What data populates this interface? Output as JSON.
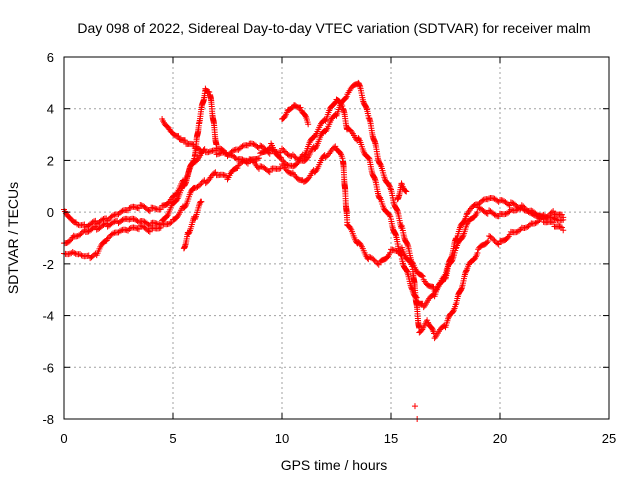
{
  "chart_data": {
    "type": "scatter",
    "title": "Day 098 of 2022, Sidereal Day-to-day VTEC variation (SDTVAR) for receiver malm",
    "xlabel": "GPS time / hours",
    "ylabel": "SDTVAR / TECUs",
    "xlim": [
      0,
      25
    ],
    "ylim": [
      -8,
      6
    ],
    "xticks": [
      0,
      5,
      10,
      15,
      20,
      25
    ],
    "yticks": [
      -8,
      -6,
      -4,
      -2,
      0,
      2,
      4,
      6
    ],
    "grid": true,
    "marker": "plus",
    "color": "#ff0000",
    "series": [
      {
        "x": [
          0,
          0.3,
          0.6,
          1.0,
          1.5,
          2.0,
          2.5,
          3.0,
          3.5,
          4.0,
          4.5,
          5.0,
          5.5,
          6.0,
          6.5,
          7.0,
          7.5,
          8.0,
          8.5,
          9.0,
          9.5,
          10.0,
          10.5,
          11.0,
          11.5,
          12.0,
          12.5,
          13.0,
          13.5,
          14.0,
          14.5,
          15.0,
          15.5,
          16.0,
          16.5,
          17.0,
          17.5,
          18.0,
          18.5,
          19.0,
          19.5,
          20.0,
          20.5,
          21.0,
          21.5,
          22.0,
          22.5,
          22.9
        ],
        "y": [
          0.1,
          -0.2,
          -0.4,
          -0.5,
          -0.4,
          -0.3,
          -0.1,
          0.1,
          0.2,
          0.1,
          0.2,
          0.6,
          1.2,
          2.0,
          2.4,
          2.3,
          2.2,
          2.4,
          2.6,
          2.5,
          2.3,
          2.4,
          2.2,
          2.0,
          2.5,
          3.2,
          3.8,
          4.6,
          5.0,
          3.6,
          1.8,
          0.8,
          -0.6,
          -2.0,
          -2.6,
          -3.0,
          -2.5,
          -1.0,
          0.0,
          0.3,
          0.5,
          0.4,
          0.3,
          0.2,
          0.0,
          -0.1,
          -0.2,
          -0.3
        ]
      },
      {
        "x": [
          0,
          0.5,
          1.0,
          1.5,
          2.0,
          2.5,
          3.0,
          3.5,
          4.0,
          4.5,
          5.0,
          5.5,
          6.0,
          6.2,
          6.5,
          6.7,
          7.0,
          7.5,
          8.0,
          8.5,
          9.0,
          9.5,
          10.0,
          10.5,
          11.0,
          11.5,
          12.0,
          12.5,
          12.8,
          13.0,
          13.5,
          14.0,
          14.5,
          15.0,
          15.5,
          16.0,
          16.2,
          16.5,
          17.0,
          17.5,
          18.0,
          18.5,
          19.0,
          19.5,
          20.0,
          20.5,
          21.0,
          21.5,
          22.0,
          22.5,
          22.9
        ],
        "y": [
          -1.2,
          -0.9,
          -0.7,
          -0.6,
          -0.5,
          -0.4,
          -0.3,
          -0.4,
          -0.5,
          -0.4,
          0.3,
          1.0,
          2.2,
          3.5,
          4.8,
          4.6,
          2.5,
          2.2,
          2.0,
          1.9,
          2.2,
          2.6,
          2.0,
          1.8,
          2.2,
          3.0,
          3.6,
          4.4,
          4.0,
          3.2,
          2.8,
          2.0,
          0.5,
          -0.3,
          -1.8,
          -3.0,
          -3.4,
          -3.6,
          -3.2,
          -2.4,
          -1.4,
          -0.5,
          0.1,
          0.0,
          -0.1,
          0.1,
          0.2,
          0.0,
          -0.3,
          -0.5,
          -0.7
        ]
      },
      {
        "x": [
          0,
          0.4,
          0.8,
          1.2,
          1.5,
          2.0,
          2.5,
          3.0,
          3.5,
          4.0,
          4.5,
          5.0,
          5.5,
          6.0,
          6.5,
          7.0,
          7.5,
          8.0,
          8.5,
          9.0,
          9.5,
          10.0,
          10.5,
          11.0,
          11.5,
          12.0,
          12.5,
          12.8,
          13.0,
          13.5,
          14.0,
          14.5,
          15.0,
          15.5,
          16.0,
          16.3,
          16.7,
          17.0,
          17.5,
          18.0,
          18.5,
          19.0,
          19.5,
          20.0,
          20.5,
          21.0,
          21.5,
          22.0,
          22.5,
          22.9
        ],
        "y": [
          -1.6,
          -1.5,
          -1.6,
          -1.7,
          -1.6,
          -1.0,
          -0.8,
          -0.7,
          -0.6,
          -0.7,
          -0.5,
          -0.3,
          0.2,
          1.0,
          1.2,
          1.5,
          1.3,
          1.8,
          2.0,
          1.7,
          1.6,
          1.8,
          1.5,
          1.2,
          1.6,
          2.2,
          2.5,
          2.0,
          -0.5,
          -1.2,
          -1.8,
          -2.0,
          -1.5,
          -1.4,
          -2.2,
          -4.6,
          -4.2,
          -4.8,
          -4.4,
          -3.5,
          -2.2,
          -1.5,
          -1.0,
          -1.2,
          -0.8,
          -0.6,
          -0.4,
          -0.2,
          0.0,
          -0.2
        ]
      },
      {
        "x": [
          4.5,
          4.8,
          5.0,
          5.3,
          5.6,
          6.0,
          6.3
        ],
        "y": [
          3.6,
          3.3,
          3.1,
          2.9,
          2.7,
          2.5,
          2.3
        ]
      },
      {
        "x": [
          5.5,
          5.7,
          6.0,
          6.3
        ],
        "y": [
          -1.4,
          -0.8,
          -0.2,
          0.4
        ]
      },
      {
        "x": [
          10.0,
          10.3,
          10.6,
          10.9,
          11.2
        ],
        "y": [
          3.6,
          4.0,
          4.2,
          4.0,
          3.4
        ]
      },
      {
        "x": [
          15.3,
          15.5,
          15.7
        ],
        "y": [
          0.5,
          1.1,
          0.8
        ]
      },
      {
        "x": [
          16.1,
          16.2
        ],
        "y": [
          -7.5,
          -8.0
        ]
      }
    ]
  }
}
